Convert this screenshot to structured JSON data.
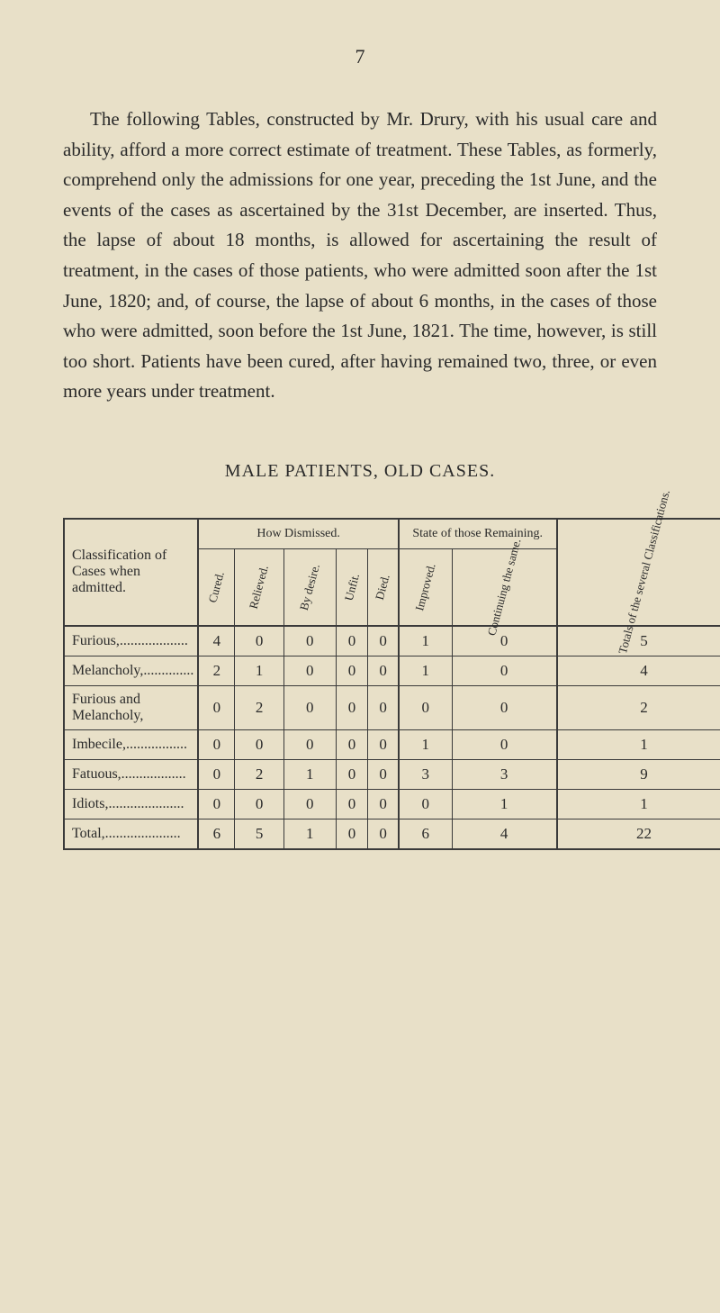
{
  "page_number": "7",
  "body_paragraph": "The following Tables, constructed by Mr. Drury, with his usual care and ability, afford a more correct estimate of treatment. These Tables, as formerly, comprehend only the admissions for one year, preceding the 1st June, and the events of the cases as ascertained by the 31st December, are inserted. Thus, the lapse of about 18 months, is allowed for ascertaining the result of treatment, in the cases of those patients, who were admitted soon after the 1st June, 1820; and, of course, the lapse of about 6 months, in the cases of those who were admitted, soon before the 1st June, 1821. The time, however, is still too short. Patients have been cured, after having remained two, three, or even more years under treatment.",
  "table_title": "MALE PATIENTS, OLD CASES.",
  "table": {
    "type": "table",
    "background_color": "#e8e0c8",
    "border_color": "#3a3a3a",
    "row_header_label": "Classification of Cases when admitted.",
    "group_headers": {
      "dismissed": "How Dismissed.",
      "remaining": "State of those Remaining.",
      "totals": "Totals of the several Classifications."
    },
    "column_headers": [
      "Cured.",
      "Relieved.",
      "By desire.",
      "Unfit.",
      "Died.",
      "Improved.",
      "Continuing the same.",
      ""
    ],
    "rows": [
      {
        "label": "Furious,",
        "dots": "...................",
        "values": [
          "4",
          "0",
          "0",
          "0",
          "0",
          "1",
          "0",
          "5"
        ]
      },
      {
        "label": "Melancholy,",
        "dots": "..............",
        "values": [
          "2",
          "1",
          "0",
          "0",
          "0",
          "1",
          "0",
          "4"
        ]
      },
      {
        "label": "Furious and Melancholy,",
        "dots": "",
        "values": [
          "0",
          "2",
          "0",
          "0",
          "0",
          "0",
          "0",
          "2"
        ]
      },
      {
        "label": "Imbecile,.",
        "dots": "................",
        "values": [
          "0",
          "0",
          "0",
          "0",
          "0",
          "1",
          "0",
          "1"
        ]
      },
      {
        "label": "Fatuous,",
        "dots": "..................",
        "values": [
          "0",
          "2",
          "1",
          "0",
          "0",
          "3",
          "3",
          "9"
        ]
      },
      {
        "label": "Idiots,",
        "dots": ".....................",
        "values": [
          "0",
          "0",
          "0",
          "0",
          "0",
          "0",
          "1",
          "1"
        ]
      },
      {
        "label": "Total,",
        "dots": ".....................",
        "values": [
          "6",
          "5",
          "1",
          "0",
          "0",
          "6",
          "4",
          "22"
        ]
      }
    ]
  }
}
